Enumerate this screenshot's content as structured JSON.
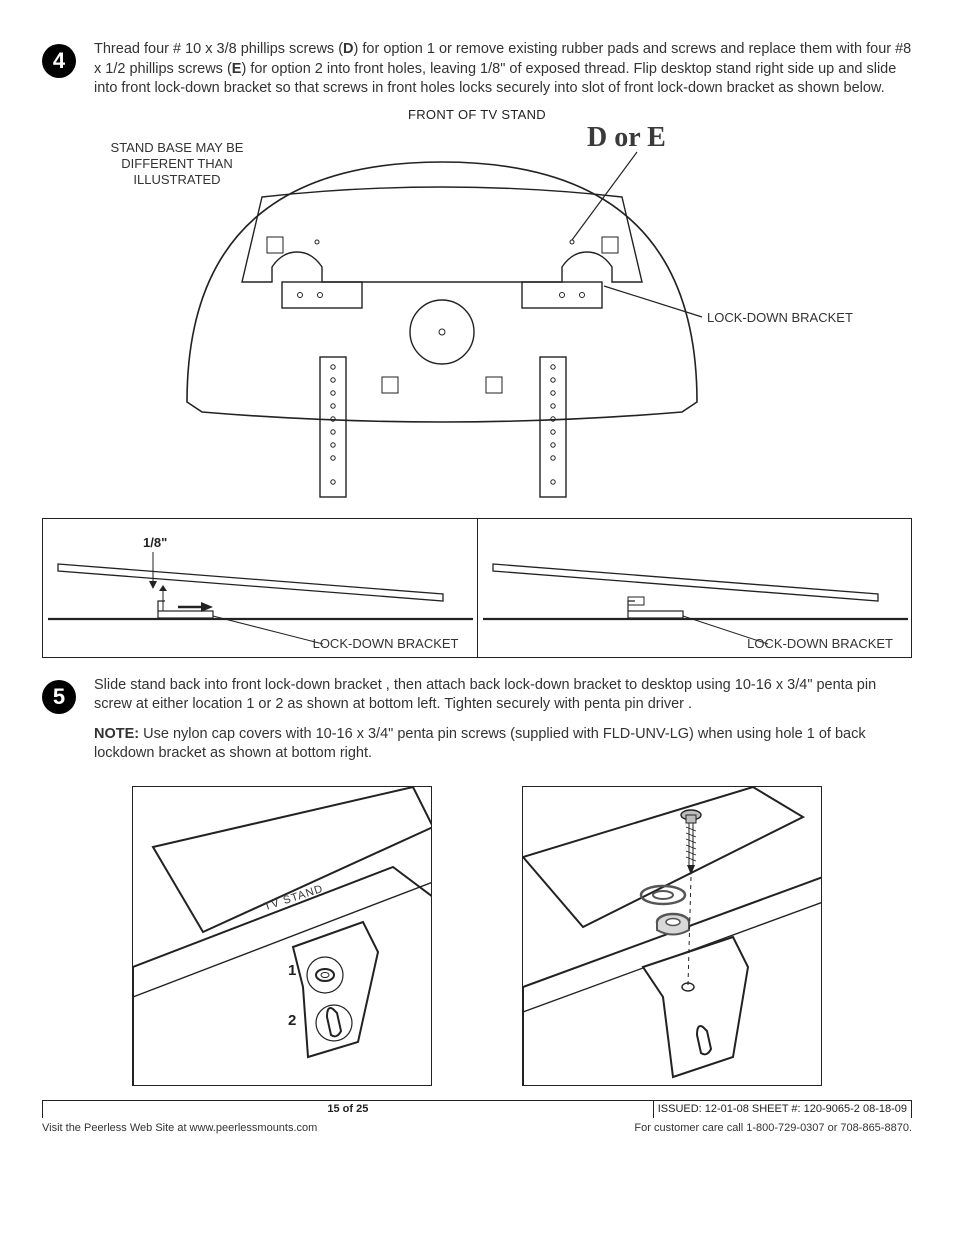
{
  "steps": {
    "s4": {
      "num": "4",
      "text_plain": "Thread four # 10 x 3/8 phillips screws (D) for option 1 or remove existing rubber pads and screws and replace them with four #8 x 1/2 phillips screws (E) for option 2 into front holes, leaving 1/8\" of exposed thread. Flip desktop stand right side up and slide into front lock-down bracket so that screws in front holes locks securely into slot of front lock-down bracket as shown below.",
      "pre_d": "Thread four # 10 x 3/8 phillips screws (",
      "d": "D",
      "mid": ") for option 1 or remove existing rubber pads and screws and replace them with four #8 x 1/2 phillips screws (",
      "e": "E",
      "post": ") for option 2 into front holes, leaving 1/8\" of exposed thread. Flip desktop stand right side up and slide into front lock-down bracket so that screws in front holes locks securely into slot of front lock-down bracket as shown below."
    },
    "s5": {
      "num": "5",
      "text": "Slide stand back into front lock-down bracket , then attach back lock-down bracket to desktop using 10-16 x 3/4\" penta pin screw at either location 1 or 2 as shown at bottom left. Tighten securely with penta pin driver .",
      "note_label": "NOTE:",
      "note_text": " Use nylon cap covers with 10-16 x 3/4\" penta pin screws (supplied with FLD-UNV-LG) when using hole 1 of back lockdown bracket as shown at bottom right."
    }
  },
  "labels": {
    "front_of_stand": "FRONT OF TV STAND",
    "d_or_e": "D or E",
    "stand_base_note": "STAND BASE MAY BE\nDIFFERENT THAN\nILLUSTRATED",
    "lockdown": "LOCK-DOWN BRACKET",
    "one_eighth": "1/8\"",
    "tv_stand": "TV STAND",
    "n1": "1",
    "n2": "2"
  },
  "footer": {
    "page": "15 of 25",
    "issued": "ISSUED: 12-01-08   SHEET #: 120-9065-2  08-18-09",
    "left": "Visit the Peerless Web Site at www.peerlessmounts.com",
    "right": "For customer care call 1-800-729-0307 or 708-865-8870."
  },
  "style": {
    "line_color": "#222222",
    "light_line": "#6a6a6a",
    "bg": "#ffffff",
    "text_color": "#333333",
    "thin": 1,
    "med": 1.5,
    "heavy": 2.2
  }
}
